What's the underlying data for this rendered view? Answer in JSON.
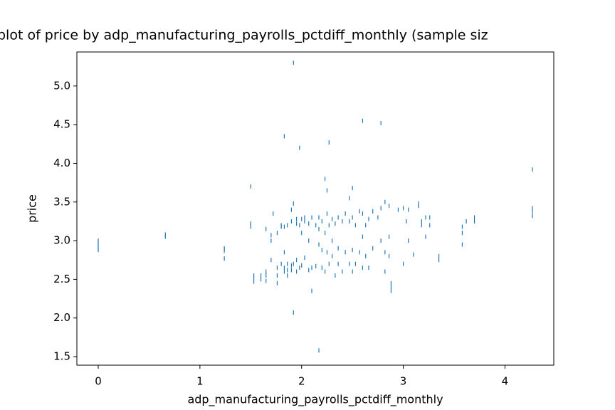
{
  "chart_data": {
    "type": "scatter",
    "title": "plot of price by adp_manufacturing_payrolls_pctdiff_monthly (sample siz",
    "x_label": "adp_manufacturing_payrolls_pctdiff_monthly",
    "y_label": "price",
    "color": "#1f77b4",
    "xlim": [
      -0.21,
      4.48
    ],
    "ylim": [
      1.39,
      5.44
    ],
    "xticks": [
      0,
      1,
      2,
      3,
      4
    ],
    "yticks": [
      1.5,
      {
        "value": 2,
        "label": "2.0"
      },
      2.5,
      {
        "value": 3,
        "label": "3.0"
      },
      3.5,
      {
        "value": 4,
        "label": "4.0"
      },
      4.5,
      {
        "value": 5,
        "label": "5.0"
      }
    ],
    "x": [
      0,
      0,
      0,
      0,
      0.66,
      0.66,
      1.24,
      1.24,
      1.24,
      1.5,
      1.5,
      1.5,
      1.53,
      1.53,
      1.53,
      1.6,
      1.6,
      1.65,
      1.65,
      1.65,
      1.65,
      1.7,
      1.7,
      1.7,
      1.72,
      1.76,
      1.76,
      1.76,
      1.76,
      1.8,
      1.8,
      1.8,
      1.83,
      1.83,
      1.83,
      1.83,
      1.83,
      1.86,
      1.86,
      1.86,
      1.86,
      1.9,
      1.9,
      1.9,
      1.9,
      1.92,
      1.92,
      1.92,
      1.92,
      1.95,
      1.95,
      1.95,
      1.95,
      1.98,
      1.98,
      1.98,
      2.0,
      2.0,
      2.0,
      2.03,
      2.03,
      2.03,
      2.07,
      2.07,
      2.07,
      2.1,
      2.1,
      2.1,
      2.14,
      2.14,
      2.17,
      2.17,
      2.17,
      2.17,
      2.2,
      2.2,
      2.2,
      2.23,
      2.23,
      2.23,
      2.25,
      2.25,
      2.25,
      2.27,
      2.27,
      2.27,
      2.3,
      2.3,
      2.3,
      2.33,
      2.33,
      2.36,
      2.36,
      2.36,
      2.4,
      2.4,
      2.43,
      2.43,
      2.47,
      2.47,
      2.47,
      2.5,
      2.5,
      2.5,
      2.5,
      2.53,
      2.53,
      2.57,
      2.57,
      2.6,
      2.6,
      2.6,
      2.6,
      2.63,
      2.63,
      2.66,
      2.66,
      2.7,
      2.7,
      2.75,
      2.78,
      2.78,
      2.78,
      2.82,
      2.82,
      2.82,
      2.86,
      2.86,
      2.86,
      2.88,
      2.88,
      2.88,
      2.95,
      3.0,
      3.0,
      3.03,
      3.05,
      3.05,
      3.1,
      3.15,
      3.15,
      3.18,
      3.18,
      3.22,
      3.22,
      3.26,
      3.26,
      3.35,
      3.35,
      3.58,
      3.58,
      3.58,
      3.62,
      3.7,
      3.7,
      4.27,
      4.27,
      4.27,
      4.27
    ],
    "y": [
      2.88,
      2.92,
      2.96,
      3.0,
      3.05,
      3.08,
      2.77,
      2.87,
      2.9,
      3.7,
      3.18,
      3.22,
      2.47,
      2.52,
      2.55,
      2.5,
      2.55,
      2.48,
      2.55,
      2.6,
      3.15,
      2.75,
      3.0,
      3.07,
      3.35,
      2.45,
      2.55,
      2.65,
      3.1,
      2.7,
      3.2,
      3.18,
      4.35,
      2.6,
      2.65,
      2.85,
      3.18,
      2.55,
      2.62,
      2.7,
      3.2,
      2.62,
      2.68,
      3.25,
      3.4,
      5.3,
      2.07,
      3.48,
      2.7,
      2.6,
      2.75,
      3.22,
      3.28,
      4.2,
      2.65,
      3.2,
      2.68,
      3.1,
      3.28,
      2.78,
      3.25,
      3.3,
      2.62,
      3.0,
      3.22,
      2.35,
      2.65,
      3.3,
      3.2,
      2.67,
      1.58,
      2.95,
      3.15,
      3.3,
      2.65,
      2.88,
      3.25,
      3.8,
      2.6,
      3.1,
      3.65,
      2.85,
      3.35,
      4.27,
      2.7,
      3.2,
      2.8,
      3.0,
      3.28,
      2.55,
      3.22,
      2.7,
      2.9,
      3.3,
      2.6,
      3.25,
      2.85,
      3.35,
      3.55,
      2.7,
      3.25,
      3.68,
      2.6,
      2.88,
      3.3,
      2.7,
      3.2,
      2.85,
      3.38,
      4.55,
      3.05,
      3.35,
      2.65,
      2.8,
      3.2,
      2.65,
      3.28,
      2.9,
      3.38,
      3.3,
      4.52,
      3.0,
      3.42,
      2.85,
      3.5,
      2.6,
      3.05,
      3.45,
      2.8,
      2.35,
      2.4,
      2.45,
      3.4,
      2.7,
      3.42,
      3.25,
      3.0,
      3.4,
      2.82,
      3.48,
      3.45,
      3.2,
      3.25,
      3.3,
      3.05,
      3.2,
      3.3,
      2.75,
      2.8,
      2.95,
      3.1,
      3.18,
      3.25,
      3.25,
      3.3,
      3.92,
      3.32,
      3.38,
      3.42
    ]
  }
}
